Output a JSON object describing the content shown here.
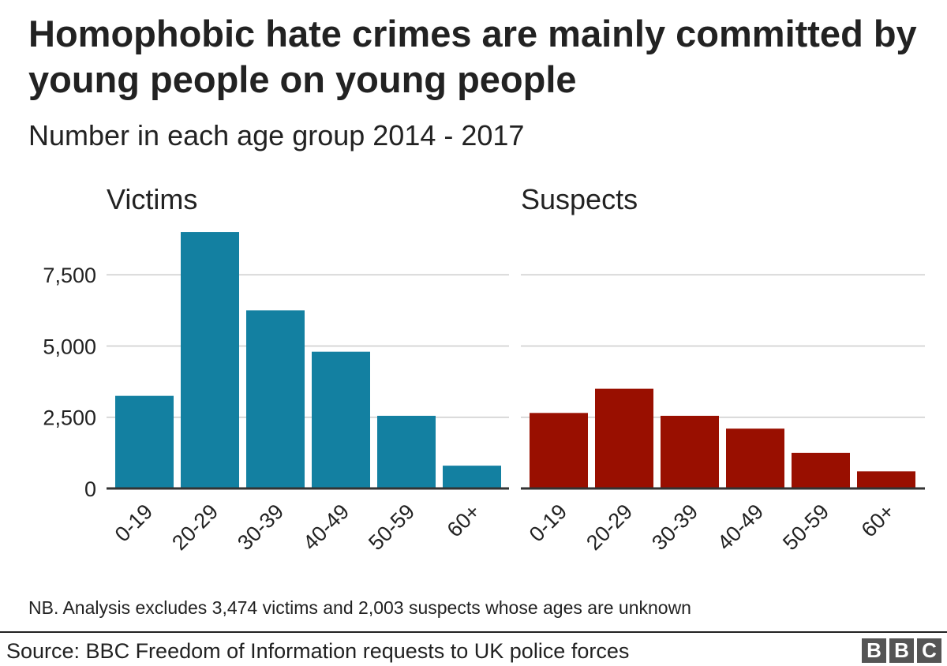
{
  "title": "Homophobic hate crimes are mainly committed by young people on young people",
  "subtitle": "Number in each age group 2014 - 2017",
  "note": "NB. Analysis excludes 3,474 victims and 2,003 suspects whose ages are unknown",
  "source": "Source: BBC Freedom of Information requests to UK police forces",
  "logo": [
    "B",
    "B",
    "C"
  ],
  "chart_data": [
    {
      "type": "bar",
      "title": "Victims",
      "categories": [
        "0-19",
        "20-29",
        "30-39",
        "40-49",
        "50-59",
        "60+"
      ],
      "values": [
        3250,
        9000,
        6250,
        4800,
        2550,
        800
      ],
      "ylim": [
        0,
        9500
      ],
      "yticks": [
        0,
        2500,
        5000,
        7500
      ],
      "ytick_labels": [
        "0",
        "2,500",
        "5,000",
        "7,500"
      ],
      "color": "#1380a1",
      "grid": true
    },
    {
      "type": "bar",
      "title": "Suspects",
      "categories": [
        "0-19",
        "20-29",
        "30-39",
        "40-49",
        "50-59",
        "60+"
      ],
      "values": [
        2650,
        3500,
        2550,
        2100,
        1250,
        600
      ],
      "ylim": [
        0,
        9500
      ],
      "yticks": [
        0,
        2500,
        5000,
        7500
      ],
      "color": "#990f00",
      "grid": true
    }
  ]
}
